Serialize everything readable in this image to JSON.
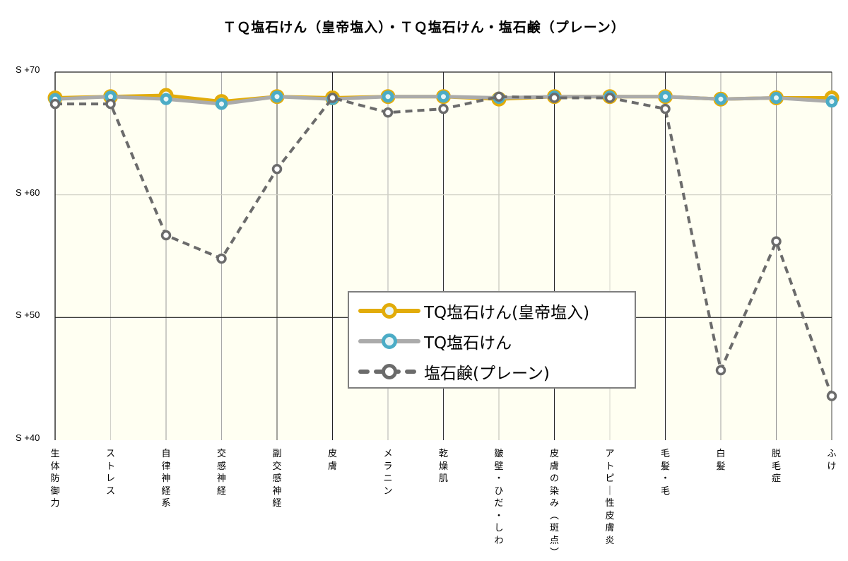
{
  "title": "ＴＱ塩石けん（皇帝塩入）・ＴＱ塩石けん・塩石鹸（プレーン）",
  "colors": {
    "plot_bg": "#FFFFF2",
    "gold": "#E2AC0B",
    "teal": "#4BACC6",
    "light_gray": "#ABABAB",
    "dark_gray": "#6B6B6B",
    "marker_fill": "#E8F4F6"
  },
  "y_ticks": [
    "S +70",
    "S +60",
    "S +50",
    "S +40"
  ],
  "legend": {
    "items": [
      {
        "label": "TQ塩石けん(皇帝塩入)"
      },
      {
        "label": "TQ塩石けん"
      },
      {
        "label": "塩石鹸(プレーン)"
      }
    ]
  },
  "chart_data": {
    "type": "line",
    "title": "ＴＱ塩石けん（皇帝塩入）・ＴＱ塩石けん・塩石鹸（プレーン）",
    "xlabel": "",
    "ylabel": "",
    "ylim": [
      40,
      70
    ],
    "y_tick_labels": [
      "S +40",
      "S +50",
      "S +60",
      "S +70"
    ],
    "grid": true,
    "legend_position": "inside-center-right",
    "categories": [
      "生体防御力",
      "ストレス",
      "自律神経系",
      "交感神経",
      "副交感神経",
      "皮膚",
      "メラニン",
      "乾燥肌",
      "皺壁・ひだ・しわ",
      "皮膚の染み（斑点）",
      "アトピー性皮膚炎",
      "毛髪・毛",
      "白髪",
      "脱毛症",
      "ふけ"
    ],
    "series": [
      {
        "name": "TQ塩石けん(皇帝塩入)",
        "style": "solid",
        "color": "#E2AC0B",
        "values": [
          67.9,
          68.0,
          68.1,
          67.6,
          68.0,
          67.9,
          68.0,
          68.0,
          67.8,
          68.0,
          68.0,
          68.0,
          67.8,
          67.9,
          67.9
        ]
      },
      {
        "name": "TQ塩石けん",
        "style": "solid",
        "color": "#ABABAB",
        "marker_color": "#4BACC6",
        "values": [
          67.8,
          68.0,
          67.8,
          67.4,
          68.0,
          67.8,
          68.0,
          68.0,
          67.9,
          68.0,
          68.0,
          68.0,
          67.8,
          67.9,
          67.6
        ]
      },
      {
        "name": "塩石鹸(プレーン)",
        "style": "dashed",
        "color": "#6B6B6B",
        "values": [
          67.4,
          67.4,
          56.7,
          54.8,
          62.1,
          67.9,
          66.7,
          67.0,
          68.0,
          67.9,
          67.9,
          67.0,
          45.7,
          56.2,
          43.6
        ]
      }
    ]
  }
}
